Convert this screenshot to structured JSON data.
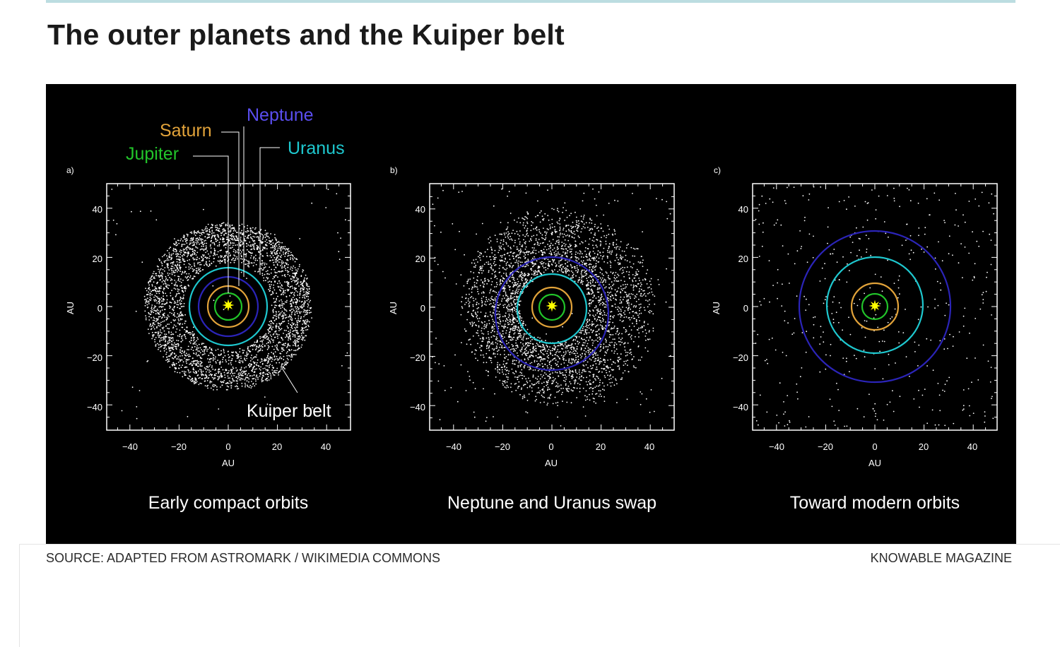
{
  "title": "The outer planets and the Kuiper belt",
  "axis_label": "AU",
  "ticks": [
    "40",
    "20",
    "0",
    "−20",
    "−40"
  ],
  "x_ticks": [
    "−40",
    "−20",
    "0",
    "20",
    "40"
  ],
  "legend": {
    "jupiter": "Jupiter",
    "saturn": "Saturn",
    "uranus": "Uranus",
    "neptune": "Neptune",
    "kuiper": "Kuiper belt"
  },
  "colors": {
    "jupiter": "#22c42a",
    "saturn": "#e2a33a",
    "uranus": "#1ec8cf",
    "neptune": "#2b24b8",
    "neptune_label": "#5a4ef0",
    "sun": "#ffff00",
    "particles": "#ffffff"
  },
  "panels": [
    {
      "letter": "a)",
      "caption": "Early compact orbits"
    },
    {
      "letter": "b)",
      "caption": "Neptune and Uranus swap"
    },
    {
      "letter": "c)",
      "caption": "Toward modern orbits"
    }
  ],
  "source": "SOURCE: ADAPTED FROM ASTROMARK / WIKIMEDIA COMMONS",
  "credit": "KNOWABLE MAGAZINE"
}
